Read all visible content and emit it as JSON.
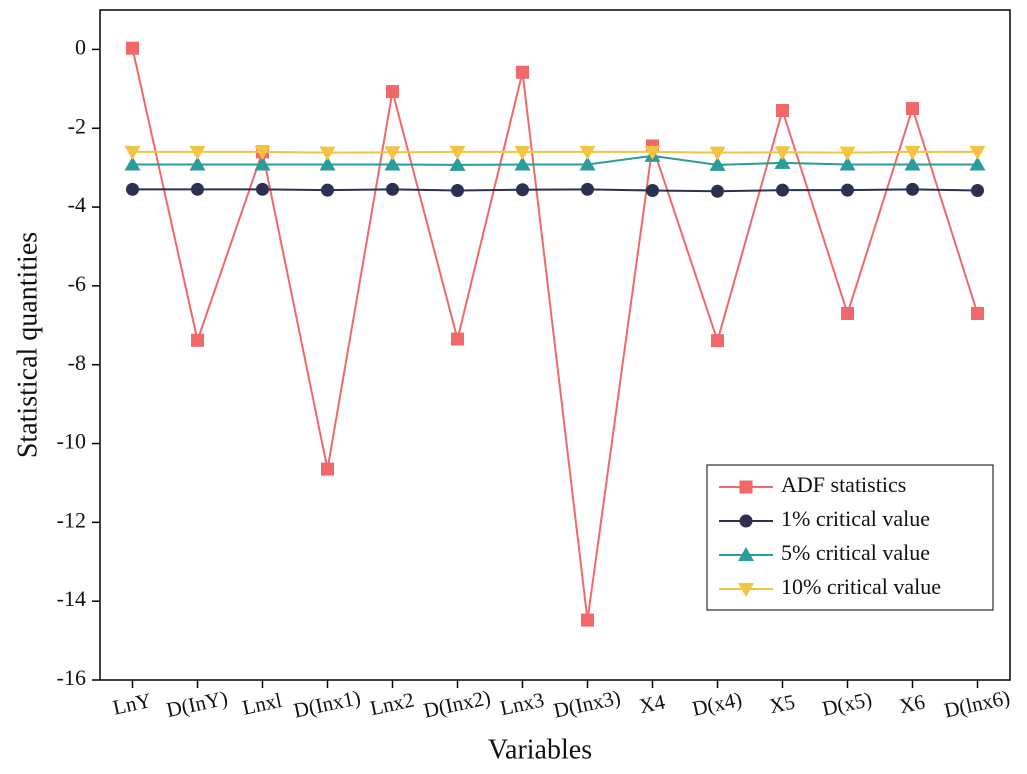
{
  "chart_data": {
    "type": "line",
    "x_label": "Variables",
    "y_label": "Statistical quantities",
    "categories": [
      "LnY",
      "D(InY)",
      "Lnxl",
      "D(Inx1)",
      "Lnx2",
      "D(Inx2)",
      "Lnx3",
      "D(Inx3)",
      "X4",
      "D(x4)",
      "X5",
      "D(x5)",
      "X6",
      "D(lnx6)"
    ],
    "series": [
      {
        "name": "ADF statistics",
        "color": "#f0686a",
        "marker": "square",
        "values": [
          0.03,
          -7.38,
          -2.6,
          -10.65,
          -1.07,
          -7.35,
          -0.58,
          -14.48,
          -2.45,
          -7.39,
          -1.55,
          -6.7,
          -1.5,
          -6.7
        ]
      },
      {
        "name": "1% critical value",
        "color": "#2c3150",
        "marker": "circle",
        "values": [
          -3.55,
          -3.55,
          -3.55,
          -3.57,
          -3.55,
          -3.58,
          -3.56,
          -3.55,
          -3.58,
          -3.6,
          -3.57,
          -3.57,
          -3.55,
          -3.58
        ]
      },
      {
        "name": "5% critical value",
        "color": "#2a9d9a",
        "marker": "triangle-up",
        "values": [
          -2.92,
          -2.92,
          -2.92,
          -2.92,
          -2.92,
          -2.93,
          -2.92,
          -2.92,
          -2.7,
          -2.93,
          -2.88,
          -2.92,
          -2.92,
          -2.92
        ]
      },
      {
        "name": "10% critical value",
        "color": "#f5c242",
        "marker": "triangle-down",
        "values": [
          -2.6,
          -2.6,
          -2.6,
          -2.62,
          -2.61,
          -2.6,
          -2.6,
          -2.6,
          -2.6,
          -2.62,
          -2.61,
          -2.62,
          -2.6,
          -2.6
        ]
      }
    ],
    "ylim": [
      -16,
      1
    ],
    "yticks": [
      -16,
      -14,
      -12,
      -10,
      -8,
      -6,
      -4,
      -2,
      0
    ],
    "legend": "lower right",
    "grid": false
  }
}
